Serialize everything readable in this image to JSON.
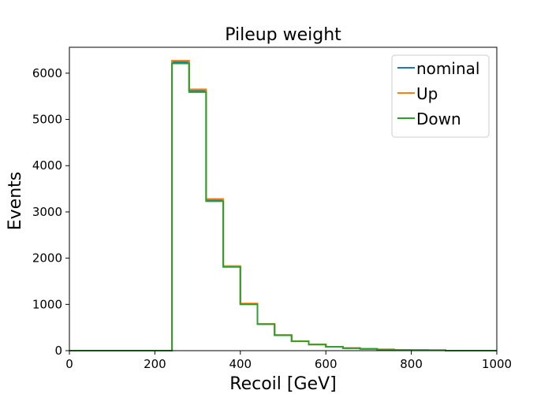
{
  "chart_data": {
    "type": "line",
    "drawstyle": "steps-post",
    "title": "Pileup weight",
    "xlabel": "Recoil [GeV]",
    "ylabel": "Events",
    "xlim": [
      0,
      1000
    ],
    "ylim": [
      0,
      6560
    ],
    "xticks": [
      0,
      200,
      400,
      600,
      800,
      1000
    ],
    "xtick_labels": [
      "0",
      "200",
      "400",
      "600",
      "800",
      "1000"
    ],
    "yticks": [
      0,
      1000,
      2000,
      3000,
      4000,
      5000,
      6000
    ],
    "ytick_labels": [
      "0",
      "1000",
      "2000",
      "3000",
      "4000",
      "5000",
      "6000"
    ],
    "grid": false,
    "legend_position": "top-right",
    "bin_edges": [
      0,
      40,
      80,
      120,
      160,
      200,
      240,
      280,
      320,
      360,
      400,
      440,
      480,
      520,
      560,
      600,
      640,
      680,
      720,
      760,
      800,
      840,
      880,
      920,
      960,
      1000
    ],
    "series": [
      {
        "name": "nominal",
        "color": "#1f77b4",
        "values": [
          0,
          0,
          0,
          0,
          0,
          0,
          6240,
          5620,
          3250,
          1820,
          1010,
          575,
          335,
          205,
          135,
          85,
          55,
          40,
          25,
          15,
          12,
          10,
          0,
          0,
          0
        ]
      },
      {
        "name": "Up",
        "color": "#ff7f0e",
        "values": [
          0,
          0,
          0,
          0,
          0,
          0,
          6270,
          5650,
          3280,
          1830,
          1020,
          578,
          338,
          207,
          137,
          86,
          57,
          42,
          27,
          16,
          12,
          10,
          0,
          0,
          0
        ]
      },
      {
        "name": "Down",
        "color": "#2ca02c",
        "values": [
          0,
          0,
          0,
          0,
          0,
          0,
          6210,
          5590,
          3230,
          1810,
          1000,
          572,
          332,
          203,
          133,
          84,
          53,
          38,
          24,
          14,
          11,
          9,
          0,
          0,
          0
        ]
      }
    ]
  }
}
